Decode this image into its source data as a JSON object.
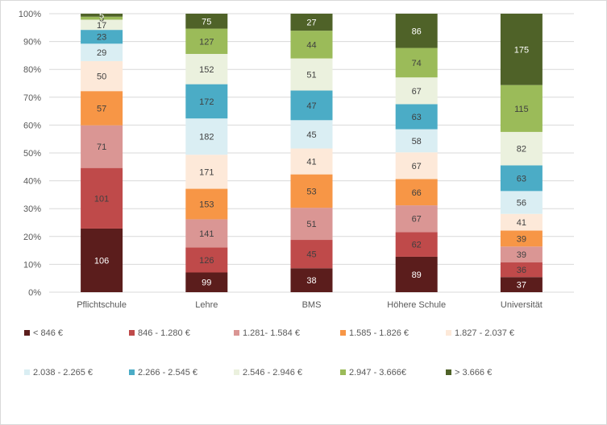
{
  "chart_data": {
    "type": "bar",
    "stacked": "percent",
    "categories": [
      "Pflichtschule",
      "Lehre",
      "BMS",
      "Höhere Schule",
      "Universität"
    ],
    "y_ticks": [
      "0%",
      "10%",
      "20%",
      "30%",
      "40%",
      "50%",
      "60%",
      "70%",
      "80%",
      "90%",
      "100%"
    ],
    "ylim": [
      0,
      100
    ],
    "grid": "horizontal",
    "legend_position": "bottom",
    "series": [
      {
        "name": "< 846 €",
        "color": "#5b1d1c",
        "label_color": "#ffffff",
        "values": [
          106,
          99,
          38,
          89,
          37
        ]
      },
      {
        "name": "846 - 1.280 €",
        "color": "#bf4a4a",
        "label_color": "#404040",
        "values": [
          101,
          126,
          45,
          62,
          36
        ]
      },
      {
        "name": "1.281- 1.584 €",
        "color": "#da9694",
        "label_color": "#404040",
        "values": [
          71,
          141,
          51,
          67,
          39
        ]
      },
      {
        "name": "1.585 - 1.826 €",
        "color": "#f79646",
        "label_color": "#404040",
        "values": [
          57,
          153,
          53,
          66,
          39
        ]
      },
      {
        "name": "1.827 - 2.037 €",
        "color": "#fde9d9",
        "label_color": "#404040",
        "values": [
          50,
          171,
          41,
          67,
          41
        ]
      },
      {
        "name": "2.038 - 2.265 €",
        "color": "#daeef3",
        "label_color": "#404040",
        "values": [
          29,
          182,
          45,
          58,
          56
        ]
      },
      {
        "name": "2.266 - 2.545 €",
        "color": "#4bacc6",
        "label_color": "#404040",
        "values": [
          23,
          172,
          47,
          63,
          63
        ]
      },
      {
        "name": "2.546 - 2.946 €",
        "color": "#ebf1de",
        "label_color": "#404040",
        "values": [
          17,
          152,
          51,
          67,
          82
        ]
      },
      {
        "name": "2.947 - 3.666€",
        "color": "#9bbb59",
        "label_color": "#404040",
        "values": [
          5,
          127,
          44,
          74,
          115
        ]
      },
      {
        "name": "> 3.666 €",
        "color": "#4f6228",
        "label_color": "#ffffff",
        "values": [
          5,
          75,
          27,
          86,
          175
        ]
      }
    ]
  }
}
